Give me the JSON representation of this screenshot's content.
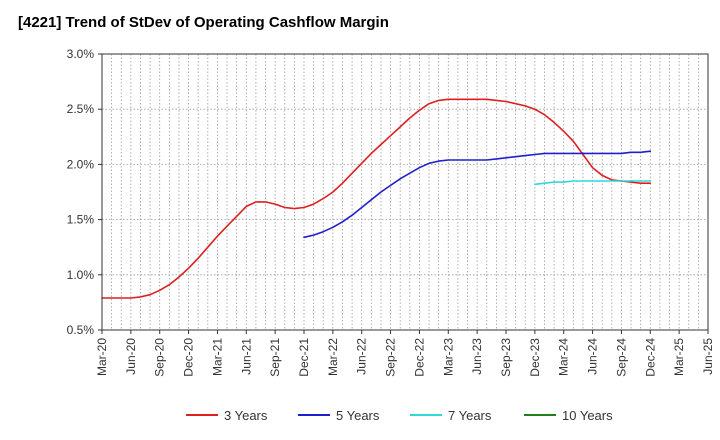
{
  "chart_data": {
    "type": "line",
    "title": "[4221]  Trend of StDev of Operating Cashflow Margin",
    "xlabel": "",
    "ylabel": "",
    "x_ticks": [
      "Mar-20",
      "Jun-20",
      "Sep-20",
      "Dec-20",
      "Mar-21",
      "Jun-21",
      "Sep-21",
      "Dec-21",
      "Mar-22",
      "Jun-22",
      "Sep-22",
      "Dec-22",
      "Mar-23",
      "Jun-23",
      "Sep-23",
      "Dec-23",
      "Mar-24",
      "Jun-24",
      "Sep-24",
      "Dec-24",
      "Mar-25",
      "Jun-25"
    ],
    "y_ticks": [
      "0.5%",
      "1.0%",
      "1.5%",
      "2.0%",
      "2.5%",
      "3.0%"
    ],
    "ylim": [
      0.5,
      3.0
    ],
    "grid": true,
    "legend_position": "bottom",
    "series": [
      {
        "name": "3 Years",
        "color": "#dd1f1f",
        "x": [
          "Mar-20",
          "Apr-20",
          "May-20",
          "Jun-20",
          "Jul-20",
          "Aug-20",
          "Sep-20",
          "Oct-20",
          "Nov-20",
          "Dec-20",
          "Jan-21",
          "Feb-21",
          "Mar-21",
          "Apr-21",
          "May-21",
          "Jun-21",
          "Jul-21",
          "Aug-21",
          "Sep-21",
          "Oct-21",
          "Nov-21",
          "Dec-21",
          "Jan-22",
          "Feb-22",
          "Mar-22",
          "Apr-22",
          "May-22",
          "Jun-22",
          "Jul-22",
          "Aug-22",
          "Sep-22",
          "Oct-22",
          "Nov-22",
          "Dec-22",
          "Jan-23",
          "Feb-23",
          "Mar-23",
          "Apr-23",
          "May-23",
          "Jun-23",
          "Jul-23",
          "Aug-23",
          "Sep-23",
          "Oct-23",
          "Nov-23",
          "Dec-23",
          "Jan-24",
          "Feb-24",
          "Mar-24",
          "Apr-24",
          "May-24",
          "Jun-24",
          "Jul-24",
          "Aug-24",
          "Sep-24",
          "Oct-24",
          "Nov-24",
          "Dec-24"
        ],
        "values": [
          0.79,
          0.79,
          0.79,
          0.79,
          0.8,
          0.82,
          0.86,
          0.91,
          0.98,
          1.06,
          1.15,
          1.25,
          1.35,
          1.44,
          1.53,
          1.62,
          1.66,
          1.66,
          1.64,
          1.61,
          1.6,
          1.61,
          1.64,
          1.69,
          1.75,
          1.83,
          1.92,
          2.01,
          2.1,
          2.18,
          2.26,
          2.34,
          2.42,
          2.49,
          2.55,
          2.58,
          2.59,
          2.59,
          2.59,
          2.59,
          2.59,
          2.58,
          2.57,
          2.55,
          2.53,
          2.5,
          2.45,
          2.38,
          2.3,
          2.21,
          2.09,
          1.97,
          1.9,
          1.86,
          1.85,
          1.84,
          1.83,
          1.83
        ]
      },
      {
        "name": "5 Years",
        "color": "#1f1fcc",
        "x": [
          "Dec-21",
          "Jan-22",
          "Feb-22",
          "Mar-22",
          "Apr-22",
          "May-22",
          "Jun-22",
          "Jul-22",
          "Aug-22",
          "Sep-22",
          "Oct-22",
          "Nov-22",
          "Dec-22",
          "Jan-23",
          "Feb-23",
          "Mar-23",
          "Apr-23",
          "May-23",
          "Jun-23",
          "Jul-23",
          "Aug-23",
          "Sep-23",
          "Oct-23",
          "Nov-23",
          "Dec-23",
          "Jan-24",
          "Feb-24",
          "Mar-24",
          "Apr-24",
          "May-24",
          "Jun-24",
          "Jul-24",
          "Aug-24",
          "Sep-24",
          "Oct-24",
          "Nov-24",
          "Dec-24"
        ],
        "values": [
          1.34,
          1.36,
          1.39,
          1.43,
          1.48,
          1.54,
          1.61,
          1.68,
          1.75,
          1.81,
          1.87,
          1.92,
          1.97,
          2.01,
          2.03,
          2.04,
          2.04,
          2.04,
          2.04,
          2.04,
          2.05,
          2.06,
          2.07,
          2.08,
          2.09,
          2.1,
          2.1,
          2.1,
          2.1,
          2.1,
          2.1,
          2.1,
          2.1,
          2.1,
          2.11,
          2.11,
          2.12
        ]
      },
      {
        "name": "7 Years",
        "color": "#30d8d8",
        "x": [
          "Dec-23",
          "Jan-24",
          "Feb-24",
          "Mar-24",
          "Apr-24",
          "May-24",
          "Jun-24",
          "Jul-24",
          "Aug-24",
          "Sep-24",
          "Oct-24",
          "Nov-24",
          "Dec-24"
        ],
        "values": [
          1.82,
          1.83,
          1.84,
          1.84,
          1.85,
          1.85,
          1.85,
          1.85,
          1.85,
          1.85,
          1.85,
          1.85,
          1.85
        ]
      },
      {
        "name": "10 Years",
        "color": "#208020",
        "x": [],
        "values": []
      }
    ]
  }
}
